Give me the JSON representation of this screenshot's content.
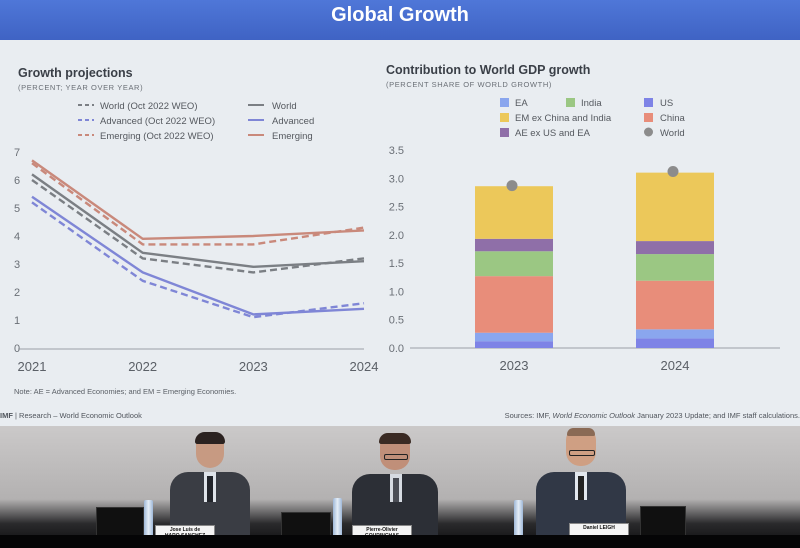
{
  "slide_title": "Global Growth",
  "footer": {
    "left_bold": "IMF",
    "left_rest": " | Research – World Economic Outlook",
    "sources_prefix": "Sources: IMF, ",
    "sources_italic": "World Economic Outlook",
    "sources_suffix": " January 2023 Update; and IMF staff calculations."
  },
  "colors": {
    "world": "#7b7f84",
    "advanced": "#7f86d6",
    "emerging": "#c9897b",
    "ea": "#8aa6ee",
    "em_ex": "#ecc85a",
    "india": "#9bc783",
    "china": "#e88d7a",
    "ae_ex": "#8f6fa8",
    "us": "#7e83e6",
    "world_dot": "#8c8c8c",
    "title_bar": "#4a70d4"
  },
  "chart_data": [
    {
      "type": "line",
      "title": "Growth projections",
      "subtitle": "(PERCENT; YEAR OVER YEAR)",
      "x": [
        "2021",
        "2022",
        "2023",
        "2024"
      ],
      "ylim": [
        0,
        7
      ],
      "y_ticks": [
        0,
        1,
        2,
        3,
        4,
        5,
        6,
        7
      ],
      "series": [
        {
          "name": "World (Oct 2022 WEO)",
          "style": "dashed",
          "color_key": "world",
          "values": [
            6.0,
            3.2,
            2.7,
            3.2
          ]
        },
        {
          "name": "Advanced (Oct 2022 WEO)",
          "style": "dashed",
          "color_key": "advanced",
          "values": [
            5.2,
            2.4,
            1.1,
            1.6
          ]
        },
        {
          "name": "Emerging (Oct 2022 WEO)",
          "style": "dashed",
          "color_key": "emerging",
          "values": [
            6.6,
            3.7,
            3.7,
            4.3
          ]
        },
        {
          "name": "World",
          "style": "solid",
          "color_key": "world",
          "values": [
            6.2,
            3.4,
            2.9,
            3.1
          ]
        },
        {
          "name": "Advanced",
          "style": "solid",
          "color_key": "advanced",
          "values": [
            5.4,
            2.7,
            1.2,
            1.4
          ]
        },
        {
          "name": "Emerging",
          "style": "solid",
          "color_key": "emerging",
          "values": [
            6.7,
            3.9,
            4.0,
            4.2
          ]
        }
      ],
      "note": "Note: AE = Advanced Economies; and EM = Emerging Economies."
    },
    {
      "type": "bar",
      "stacked": true,
      "title": "Contribution to World GDP growth",
      "subtitle": "(PERCENT SHARE OF WORLD GROWTH)",
      "categories": [
        "2023",
        "2024"
      ],
      "ylim": [
        0,
        3.5
      ],
      "y_ticks": [
        "0.0",
        "0.5",
        "1.0",
        "1.5",
        "2.0",
        "2.5",
        "3.0",
        "3.5"
      ],
      "legend": [
        "EA",
        "India",
        "US",
        "EM ex China and India",
        "China",
        "World",
        "AE ex US and EA"
      ],
      "series": [
        {
          "name": "US",
          "color_key": "us",
          "values": [
            0.12,
            0.17
          ]
        },
        {
          "name": "EA",
          "color_key": "ea",
          "values": [
            0.15,
            0.16
          ]
        },
        {
          "name": "China",
          "color_key": "china",
          "values": [
            1.0,
            0.86
          ]
        },
        {
          "name": "India",
          "color_key": "india",
          "values": [
            0.44,
            0.47
          ]
        },
        {
          "name": "AE ex US and EA",
          "color_key": "ae_ex",
          "values": [
            0.22,
            0.23
          ]
        },
        {
          "name": "EM ex China and India",
          "color_key": "em_ex",
          "values": [
            0.93,
            1.21
          ]
        }
      ],
      "world": {
        "name": "World",
        "values": [
          2.87,
          3.12
        ]
      }
    }
  ],
  "speakers": [
    {
      "name_line1": "Jose Luis de",
      "name_line2": "HARO SANCHEZ"
    },
    {
      "name_line1": "Pierre-Olivier",
      "name_line2": "GOURINCHAS"
    },
    {
      "name_line1": "",
      "name_line2": "Daniel LEIGH"
    }
  ]
}
